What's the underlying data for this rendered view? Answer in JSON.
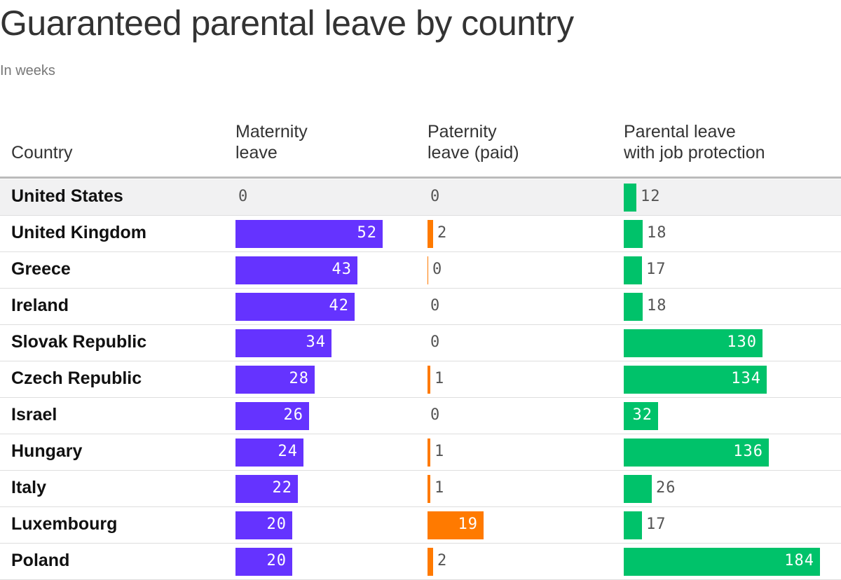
{
  "title": "Guaranteed parental leave by country",
  "subtitle": "In weeks",
  "headers": {
    "country": "Country",
    "maternity": [
      "Maternity",
      "leave"
    ],
    "paternity": [
      "Paternity",
      "leave (paid)"
    ],
    "parental": [
      "Parental leave",
      "with job protection"
    ]
  },
  "colors": {
    "maternity": "#6533ff",
    "paternity": "#ff7a00",
    "parental": "#00c26a",
    "highlight_row": "#f1f1f2"
  },
  "chart_data": {
    "type": "table",
    "columns": [
      "Country",
      "Maternity leave",
      "Paternity leave (paid)",
      "Parental leave with job protection"
    ],
    "rows": [
      {
        "country": "United States",
        "maternity": 0,
        "paternity": 0,
        "parental": 12,
        "highlight": true
      },
      {
        "country": "United Kingdom",
        "maternity": 52,
        "paternity": 2,
        "parental": 18
      },
      {
        "country": "Greece",
        "maternity": 43,
        "paternity": 0.2,
        "paternity_label": "0",
        "parental": 17
      },
      {
        "country": "Ireland",
        "maternity": 42,
        "paternity": 0,
        "parental": 18
      },
      {
        "country": "Slovak Republic",
        "maternity": 34,
        "paternity": 0,
        "parental": 130
      },
      {
        "country": "Czech Republic",
        "maternity": 28,
        "paternity": 1,
        "parental": 134
      },
      {
        "country": "Israel",
        "maternity": 26,
        "paternity": 0,
        "parental": 32
      },
      {
        "country": "Hungary",
        "maternity": 24,
        "paternity": 1,
        "parental": 136
      },
      {
        "country": "Italy",
        "maternity": 22,
        "paternity": 1,
        "parental": 26
      },
      {
        "country": "Luxembourg",
        "maternity": 20,
        "paternity": 19,
        "parental": 17
      },
      {
        "country": "Poland",
        "maternity": 20,
        "paternity": 2,
        "parental": 184
      }
    ]
  }
}
